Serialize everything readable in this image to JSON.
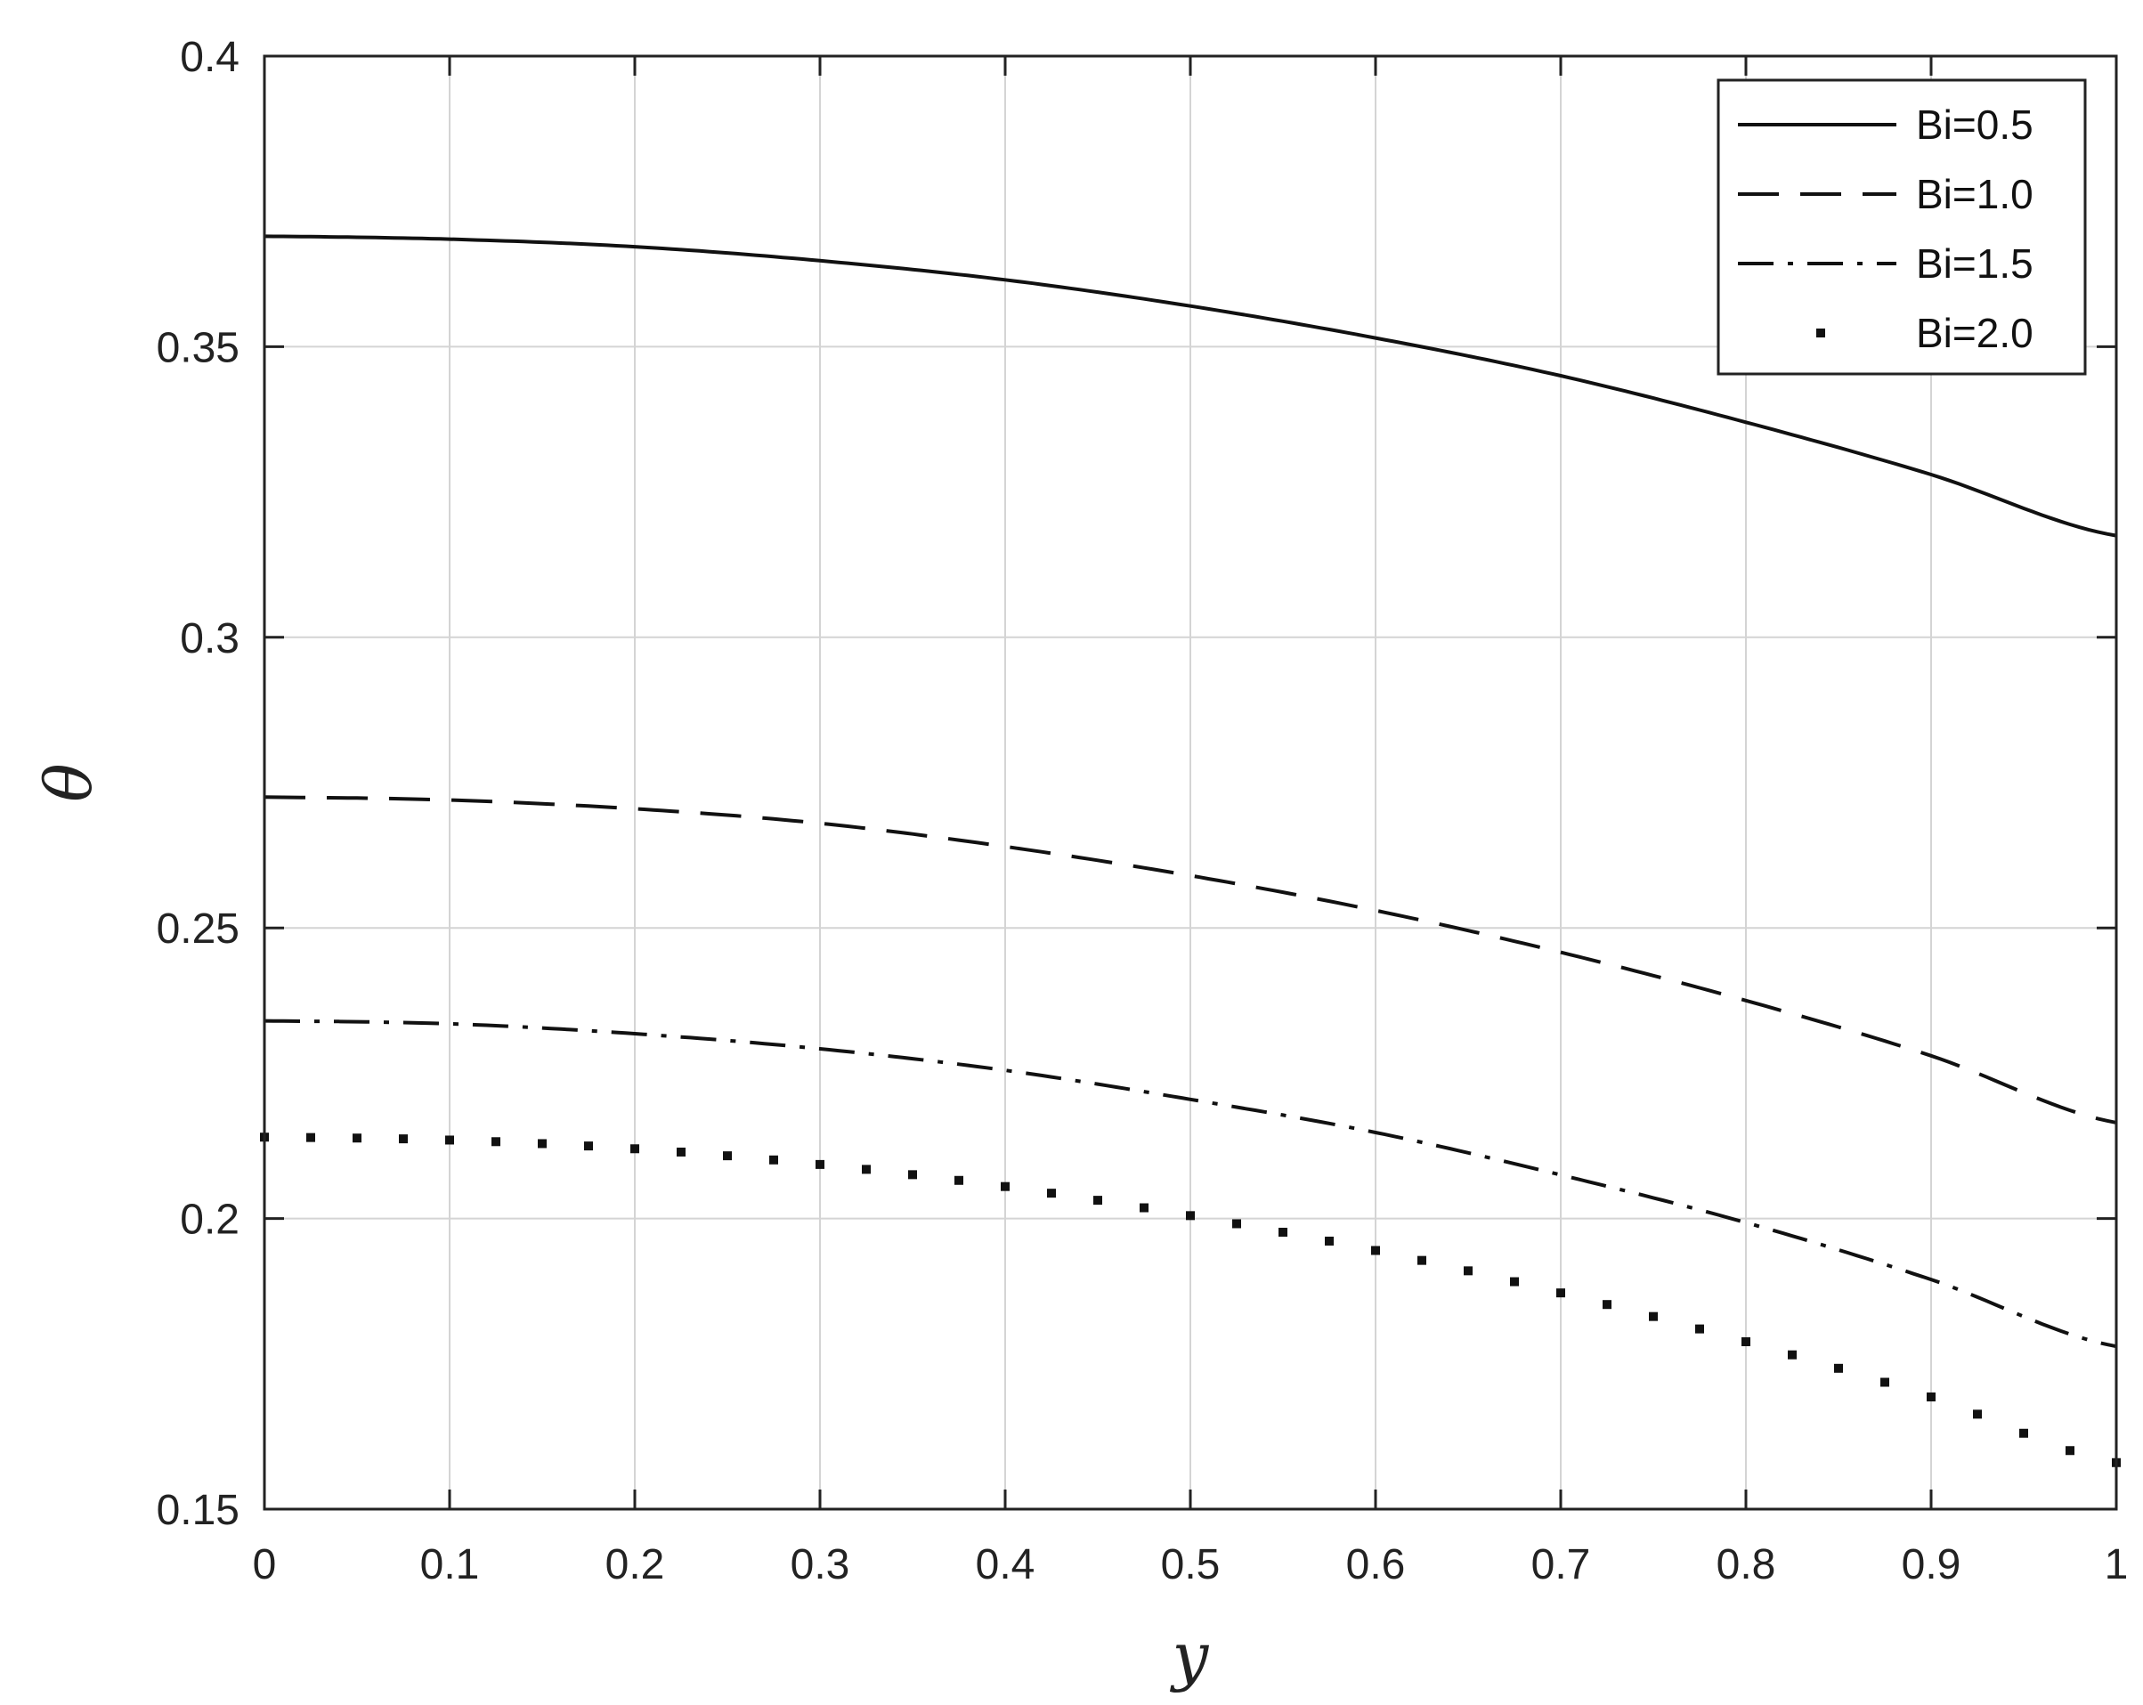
{
  "chart_data": {
    "type": "line",
    "xlabel": "y",
    "ylabel": "θ",
    "xlim": [
      0,
      1
    ],
    "ylim": [
      0.15,
      0.4
    ],
    "xticks": [
      0,
      0.1,
      0.2,
      0.3,
      0.4,
      0.5,
      0.6,
      0.7,
      0.8,
      0.9,
      1
    ],
    "xtick_labels": [
      "0",
      "0.1",
      "0.2",
      "0.3",
      "0.4",
      "0.5",
      "0.6",
      "0.7",
      "0.8",
      "0.9",
      "1"
    ],
    "yticks": [
      0.15,
      0.2,
      0.25,
      0.3,
      0.35,
      0.4
    ],
    "ytick_labels": [
      "0.15",
      "0.2",
      "0.25",
      "0.3",
      "0.35",
      "0.4"
    ],
    "grid": true,
    "legend_position": "top-right",
    "x": [
      0,
      0.1,
      0.2,
      0.3,
      0.4,
      0.5,
      0.6,
      0.7,
      0.8,
      0.9,
      1.0
    ],
    "series": [
      {
        "name": "Bi=0.5",
        "style": "solid",
        "values": [
          0.369,
          0.3685,
          0.3672,
          0.3648,
          0.3615,
          0.357,
          0.3515,
          0.345,
          0.337,
          0.328,
          0.3175
        ]
      },
      {
        "name": "Bi=1.0",
        "style": "dashed",
        "values": [
          0.2725,
          0.272,
          0.2705,
          0.268,
          0.264,
          0.259,
          0.253,
          0.2458,
          0.2375,
          0.228,
          0.2165
        ]
      },
      {
        "name": "Bi=1.5",
        "style": "dashdot",
        "values": [
          0.234,
          0.2335,
          0.2318,
          0.2292,
          0.2255,
          0.2205,
          0.2148,
          0.2075,
          0.1993,
          0.1895,
          0.178
        ]
      },
      {
        "name": "Bi=2.0",
        "style": "dotted",
        "values": [
          0.214,
          0.2135,
          0.212,
          0.2093,
          0.2055,
          0.2005,
          0.1945,
          0.1872,
          0.1788,
          0.1693,
          0.158
        ]
      }
    ]
  }
}
